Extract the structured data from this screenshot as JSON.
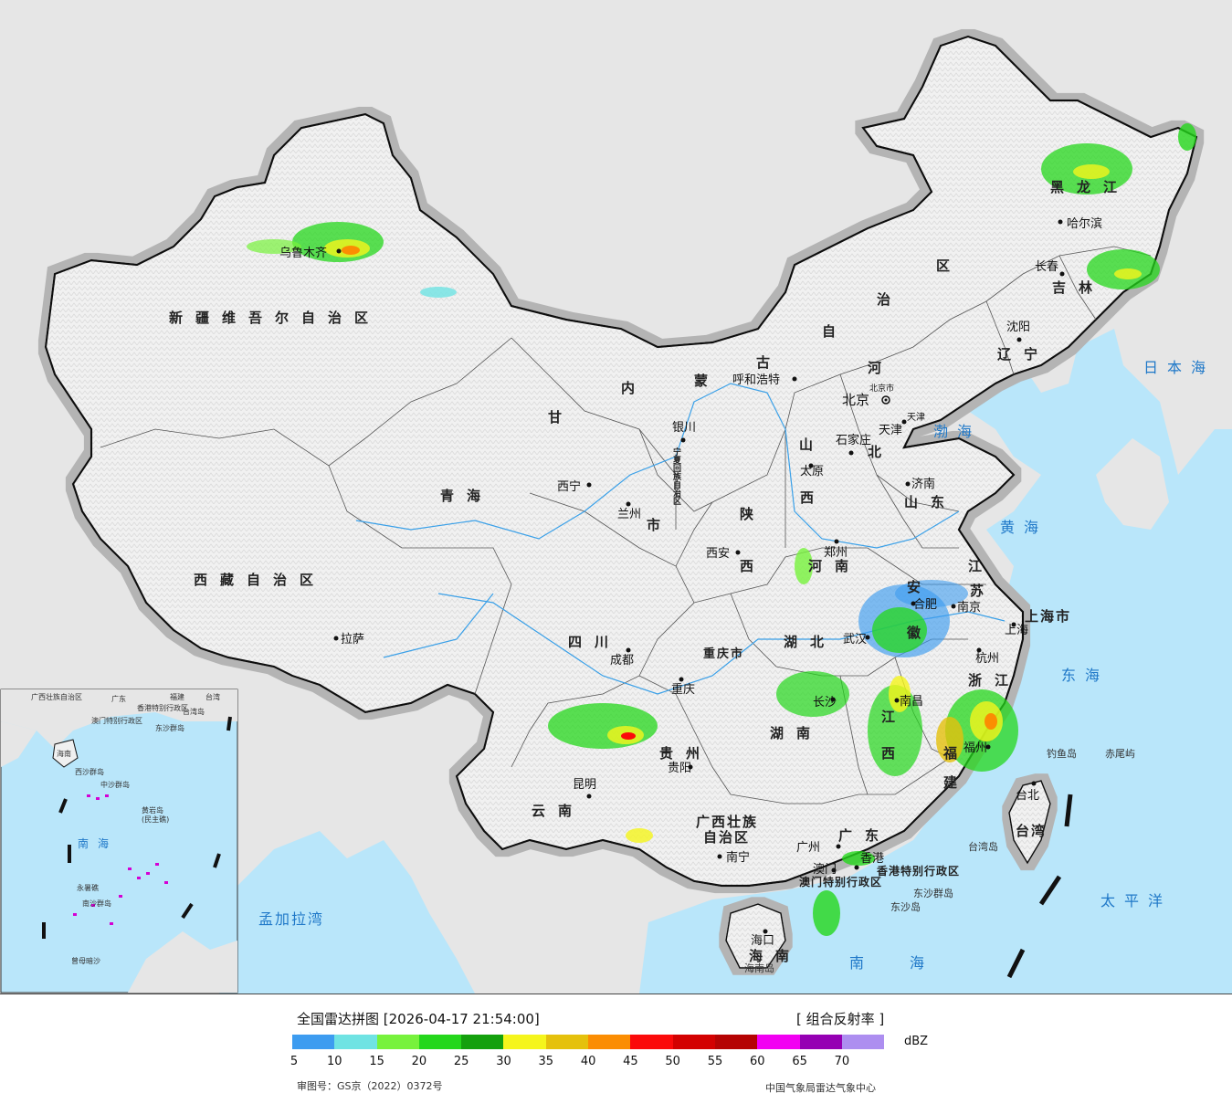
{
  "legend": {
    "title": "全国雷达拼图 [2026-04-17 21:54:00]",
    "product": "[ 组合反射率 ]",
    "unit": "dBZ",
    "colors": [
      "#3d9cf0",
      "#6fe3e3",
      "#77f23c",
      "#24d71b",
      "#14a00d",
      "#f5f51c",
      "#e5c10c",
      "#fb8d02",
      "#fb0a0a",
      "#d30101",
      "#b50303",
      "#f200f2",
      "#9500b3",
      "#ad8ef0"
    ],
    "ticks": [
      "5",
      "10",
      "15",
      "20",
      "25",
      "30",
      "35",
      "40",
      "45",
      "50",
      "55",
      "60",
      "65",
      "70"
    ],
    "approval": "审图号：GS京（2022）0372号",
    "agency": "中国气象局雷达气象中心"
  },
  "map": {
    "colors": {
      "ocean": "#b9e6fa",
      "land": "#f0f0f0",
      "foreign": "#e6e6e6",
      "border": "#111111",
      "halo": "#b4b4b4",
      "river": "#3aa0e8"
    },
    "provinces": [
      {
        "id": "xinjiang",
        "name": "新疆维吾尔自治区"
      },
      {
        "id": "xizang",
        "name": "西藏自治区"
      },
      {
        "id": "neimenggu-1",
        "name": "内"
      },
      {
        "id": "neimenggu-2",
        "name": "蒙"
      },
      {
        "id": "neimenggu-3",
        "name": "古"
      },
      {
        "id": "neimenggu-4",
        "name": "自"
      },
      {
        "id": "neimenggu-5",
        "name": "治"
      },
      {
        "id": "neimenggu-6",
        "name": "区"
      },
      {
        "id": "heilongjiang",
        "name": "黑龙江"
      },
      {
        "id": "jilin",
        "name": "吉林"
      },
      {
        "id": "liaoning",
        "name": "辽宁"
      },
      {
        "id": "hebei-1",
        "name": "河"
      },
      {
        "id": "hebei-2",
        "name": "北"
      },
      {
        "id": "gansu",
        "name": "甘"
      },
      {
        "id": "qinghai",
        "name": "青海"
      },
      {
        "id": "ningxia",
        "name": "宁夏回族自治区"
      },
      {
        "id": "shanxi-1",
        "name": "山"
      },
      {
        "id": "shanxi-2",
        "name": "西"
      },
      {
        "id": "shandong",
        "name": "山东"
      },
      {
        "id": "shaanxi-1",
        "name": "陕"
      },
      {
        "id": "shaanxi-2",
        "name": "西"
      },
      {
        "id": "henan",
        "name": "河南"
      },
      {
        "id": "jiangsu-1",
        "name": "江"
      },
      {
        "id": "jiangsu-2",
        "name": "苏"
      },
      {
        "id": "anhui-1",
        "name": "安"
      },
      {
        "id": "anhui-2",
        "name": "徽"
      },
      {
        "id": "sichuan",
        "name": "四川"
      },
      {
        "id": "chongqing",
        "name": "重庆市"
      },
      {
        "id": "hubei",
        "name": "湖北"
      },
      {
        "id": "zhejiang",
        "name": "浙江"
      },
      {
        "id": "shanghai",
        "name": "上海市"
      },
      {
        "id": "jiangxi-1",
        "name": "江"
      },
      {
        "id": "jiangxi-2",
        "name": "西"
      },
      {
        "id": "hunan",
        "name": "湖南"
      },
      {
        "id": "guizhou",
        "name": "贵州"
      },
      {
        "id": "fujian-1",
        "name": "福"
      },
      {
        "id": "fujian-2",
        "name": "建"
      },
      {
        "id": "yunnan",
        "name": "云南"
      },
      {
        "id": "guangxi-1",
        "name": "广西壮族"
      },
      {
        "id": "guangxi-2",
        "name": "自治区"
      },
      {
        "id": "guangdong",
        "name": "广东"
      },
      {
        "id": "hainan",
        "name": "海南"
      },
      {
        "id": "taiwan",
        "name": "台湾"
      },
      {
        "id": "gansu-lanzhou",
        "name": "市"
      },
      {
        "id": "hongkong",
        "name": "香港特别行政区"
      },
      {
        "id": "macau",
        "name": "澳门特别行政区"
      }
    ],
    "cities": [
      {
        "id": "urumqi",
        "name": "乌鲁木齐"
      },
      {
        "id": "lhasa",
        "name": "拉萨"
      },
      {
        "id": "xining",
        "name": "西宁"
      },
      {
        "id": "lanzhou",
        "name": "兰州"
      },
      {
        "id": "yinchuan",
        "name": "银川"
      },
      {
        "id": "huhehaote",
        "name": "呼和浩特"
      },
      {
        "id": "beijing",
        "name": "北京"
      },
      {
        "id": "beijingshi",
        "name": "北京市"
      },
      {
        "id": "tianjin",
        "name": "天津"
      },
      {
        "id": "tianjinshi",
        "name": "天津"
      },
      {
        "id": "shijiazhuang",
        "name": "石家庄"
      },
      {
        "id": "taiyuan",
        "name": "太原"
      },
      {
        "id": "jinan",
        "name": "济南"
      },
      {
        "id": "zhengzhou",
        "name": "郑州"
      },
      {
        "id": "xian",
        "name": "西安"
      },
      {
        "id": "chengdu",
        "name": "成都"
      },
      {
        "id": "chongqingcity",
        "name": "重庆"
      },
      {
        "id": "wuhan",
        "name": "武汉"
      },
      {
        "id": "hefei",
        "name": "合肥"
      },
      {
        "id": "nanjing",
        "name": "南京"
      },
      {
        "id": "shanghaicity",
        "name": "上海"
      },
      {
        "id": "hangzhou",
        "name": "杭州"
      },
      {
        "id": "nanchang",
        "name": "南昌"
      },
      {
        "id": "changsha",
        "name": "长沙"
      },
      {
        "id": "guiyang",
        "name": "贵阳"
      },
      {
        "id": "kunming",
        "name": "昆明"
      },
      {
        "id": "nanning",
        "name": "南宁"
      },
      {
        "id": "guangzhou",
        "name": "广州"
      },
      {
        "id": "fuzhou",
        "name": "福州"
      },
      {
        "id": "taibei",
        "name": "台北"
      },
      {
        "id": "haikou",
        "name": "海口"
      },
      {
        "id": "aomen",
        "name": "澳门"
      },
      {
        "id": "xianggang",
        "name": "香港"
      },
      {
        "id": "haerbin",
        "name": "哈尔滨"
      },
      {
        "id": "changchun",
        "name": "长春"
      },
      {
        "id": "shenyang",
        "name": "沈阳"
      }
    ],
    "seas": [
      {
        "id": "japan-sea",
        "name": "日本海"
      },
      {
        "id": "bohai",
        "name": "渤海"
      },
      {
        "id": "yellow-sea",
        "name": "黄海"
      },
      {
        "id": "east-sea",
        "name": "东海"
      },
      {
        "id": "pacific",
        "name": "太平洋"
      },
      {
        "id": "south-sea",
        "name": "南海"
      },
      {
        "id": "bengal",
        "name": "孟加拉湾"
      },
      {
        "id": "inset-south-sea",
        "name": "南海"
      }
    ],
    "islands": [
      {
        "id": "diaoyu",
        "name": "钓鱼岛"
      },
      {
        "id": "chiwei",
        "name": "赤尾屿"
      },
      {
        "id": "taiwan-island",
        "name": "台湾岛"
      },
      {
        "id": "dongsha-islands",
        "name": "东沙群岛"
      },
      {
        "id": "dongsha-island",
        "name": "东沙岛"
      },
      {
        "id": "hainan-island",
        "name": "海南岛"
      },
      {
        "id": "inset-guangxi",
        "name": "广西壮族自治区"
      },
      {
        "id": "inset-guangdong",
        "name": "广东"
      },
      {
        "id": "inset-fujian",
        "name": "福建"
      },
      {
        "id": "inset-taiwan",
        "name": "台湾"
      },
      {
        "id": "inset-hk",
        "name": "香港特别行政区"
      },
      {
        "id": "inset-macau",
        "name": "澳门特别行政区"
      },
      {
        "id": "inset-hainan",
        "name": "海南"
      },
      {
        "id": "inset-dongsha",
        "name": "东沙群岛"
      },
      {
        "id": "inset-xisha",
        "name": "西沙群岛"
      },
      {
        "id": "inset-zhongsha",
        "name": "中沙群岛"
      },
      {
        "id": "inset-huangyan",
        "name": "黄岩岛"
      },
      {
        "id": "inset-minzhu",
        "name": "(民主礁)"
      },
      {
        "id": "inset-yongshu",
        "name": "永暑礁"
      },
      {
        "id": "inset-nansha",
        "name": "南沙群岛"
      },
      {
        "id": "inset-zengmu",
        "name": "曾母暗沙"
      },
      {
        "id": "inset-taiwan-island",
        "name": "台湾岛"
      }
    ]
  }
}
